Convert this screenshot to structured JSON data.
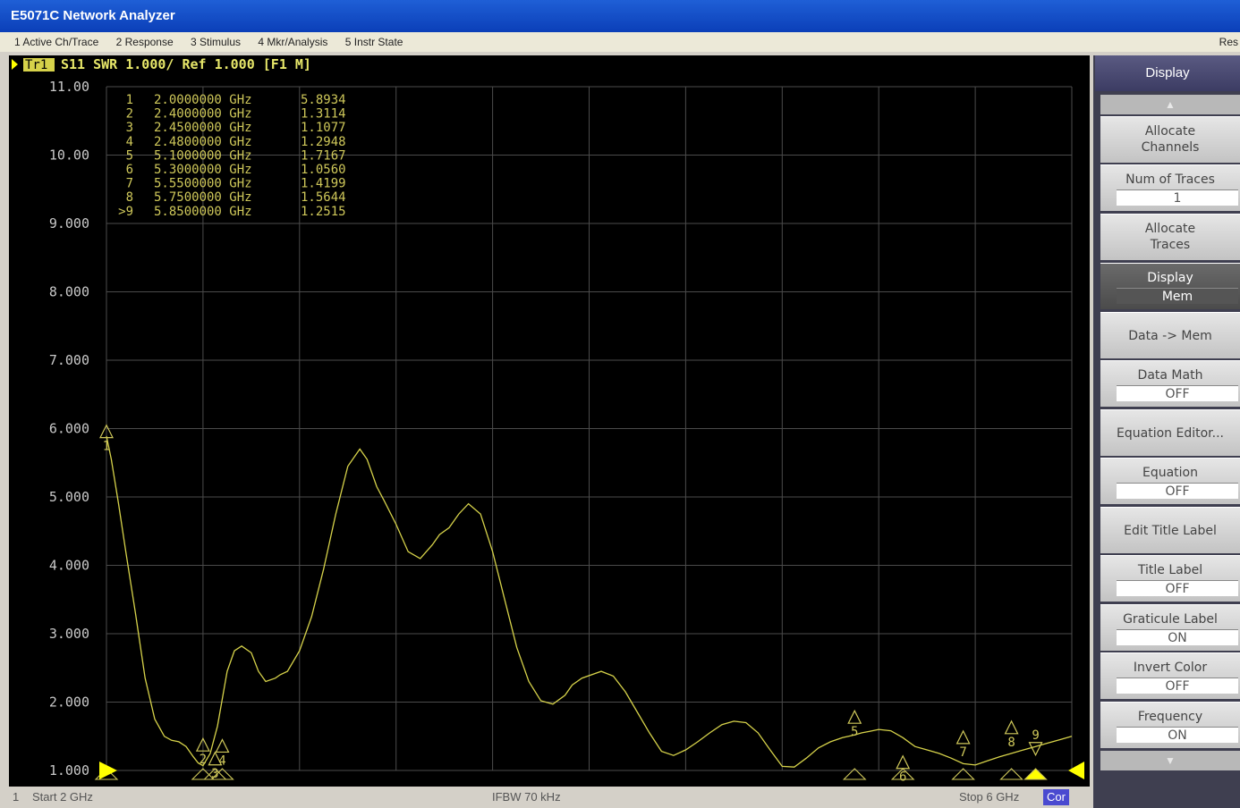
{
  "window": {
    "title": "E5071C Network Analyzer"
  },
  "menu": {
    "items": [
      "1 Active Ch/Trace",
      "2 Response",
      "3 Stimulus",
      "4 Mkr/Analysis",
      "5 Instr State"
    ],
    "restore": "Res"
  },
  "trace_header": {
    "trace": "Tr1",
    "text": "S11  SWR 1.000/ Ref 1.000 [F1 M]"
  },
  "status": {
    "channel": "1",
    "start": "Start 2 GHz",
    "ifbw": "IFBW 70 kHz",
    "stop": "Stop 6 GHz",
    "cor": "Cor"
  },
  "softkeys": {
    "title": "Display",
    "up_arrow": "▲",
    "down_arrow": "▼",
    "allocate_channels": {
      "l1": "Allocate",
      "l2": "Channels"
    },
    "num_traces": {
      "label": "Num of Traces",
      "value": "1"
    },
    "allocate_traces": {
      "l1": "Allocate",
      "l2": "Traces"
    },
    "display": {
      "label": "Display",
      "value": "Mem"
    },
    "data_mem": "Data -> Mem",
    "data_math": {
      "label": "Data Math",
      "value": "OFF"
    },
    "equation_editor": "Equation Editor...",
    "equation": {
      "label": "Equation",
      "value": "OFF"
    },
    "edit_title": "Edit Title Label",
    "title_label": {
      "label": "Title Label",
      "value": "OFF"
    },
    "graticule_label": {
      "label": "Graticule Label",
      "value": "ON"
    },
    "invert_color": {
      "label": "Invert Color",
      "value": "OFF"
    },
    "frequency": {
      "label": "Frequency",
      "value": "ON"
    }
  },
  "colors": {
    "trace": "#d6d24a",
    "grid": "#4b4b4b",
    "label": "#c9c9c9",
    "marker_text": "#cfc85a"
  },
  "chart_data": {
    "type": "line",
    "xlim": [
      2.0,
      6.0
    ],
    "ylim": [
      1.0,
      11.0
    ],
    "ytick_labels": [
      "11.00",
      "10.00",
      "9.000",
      "8.000",
      "7.000",
      "6.000",
      "5.000",
      "4.000",
      "3.000",
      "2.000",
      "1.000"
    ],
    "x_ghz": [
      2.0,
      2.02,
      2.05,
      2.08,
      2.12,
      2.16,
      2.2,
      2.24,
      2.27,
      2.3,
      2.33,
      2.36,
      2.38,
      2.4,
      2.43,
      2.46,
      2.48,
      2.5,
      2.53,
      2.56,
      2.6,
      2.63,
      2.66,
      2.7,
      2.72,
      2.75,
      2.8,
      2.85,
      2.9,
      2.95,
      3.0,
      3.05,
      3.08,
      3.12,
      3.15,
      3.2,
      3.25,
      3.3,
      3.35,
      3.38,
      3.42,
      3.46,
      3.5,
      3.55,
      3.6,
      3.65,
      3.7,
      3.75,
      3.8,
      3.85,
      3.9,
      3.93,
      3.97,
      4.05,
      4.1,
      4.15,
      4.2,
      4.25,
      4.3,
      4.35,
      4.4,
      4.45,
      4.5,
      4.55,
      4.6,
      4.65,
      4.7,
      4.75,
      4.8,
      4.85,
      4.9,
      4.95,
      5.0,
      5.05,
      5.1,
      5.13,
      5.16,
      5.2,
      5.25,
      5.3,
      5.35,
      5.4,
      5.45,
      5.5,
      5.55,
      5.6,
      5.65,
      5.7,
      5.75,
      5.8,
      5.85,
      5.9,
      5.95,
      6.0
    ],
    "swr": [
      5.89,
      5.55,
      4.9,
      4.2,
      3.3,
      2.35,
      1.75,
      1.5,
      1.44,
      1.42,
      1.35,
      1.2,
      1.11,
      1.07,
      1.25,
      1.65,
      2.05,
      2.45,
      2.75,
      2.82,
      2.72,
      2.45,
      2.3,
      2.35,
      2.4,
      2.45,
      2.75,
      3.25,
      3.95,
      4.75,
      5.45,
      5.7,
      5.55,
      5.15,
      4.95,
      4.6,
      4.2,
      4.1,
      4.3,
      4.45,
      4.55,
      4.75,
      4.9,
      4.75,
      4.2,
      3.5,
      2.8,
      2.3,
      2.02,
      1.97,
      2.1,
      2.25,
      2.35,
      2.45,
      2.38,
      2.15,
      1.85,
      1.55,
      1.28,
      1.22,
      1.3,
      1.42,
      1.55,
      1.67,
      1.72,
      1.7,
      1.55,
      1.3,
      1.06,
      1.05,
      1.18,
      1.33,
      1.42,
      1.48,
      1.52,
      1.55,
      1.57,
      1.6,
      1.58,
      1.48,
      1.35,
      1.3,
      1.25,
      1.18,
      1.1,
      1.08,
      1.14,
      1.2,
      1.25,
      1.3,
      1.35,
      1.4,
      1.45,
      1.5
    ],
    "markers": [
      {
        "num": "1",
        "freq": "2.0000000 GHz",
        "value": "5.8934",
        "x": 2.0,
        "y": 5.8934
      },
      {
        "num": "2",
        "freq": "2.4000000 GHz",
        "value": "1.3114",
        "x": 2.4,
        "y": 1.3114
      },
      {
        "num": "3",
        "freq": "2.4500000 GHz",
        "value": "1.1077",
        "x": 2.45,
        "y": 1.1077
      },
      {
        "num": "4",
        "freq": "2.4800000 GHz",
        "value": "1.2948",
        "x": 2.48,
        "y": 1.2948
      },
      {
        "num": "5",
        "freq": "5.1000000 GHz",
        "value": "1.7167",
        "x": 5.1,
        "y": 1.7167
      },
      {
        "num": "6",
        "freq": "5.3000000 GHz",
        "value": "1.0560",
        "x": 5.3,
        "y": 1.056
      },
      {
        "num": "7",
        "freq": "5.5500000 GHz",
        "value": "1.4199",
        "x": 5.55,
        "y": 1.4199
      },
      {
        "num": "8",
        "freq": "5.7500000 GHz",
        "value": "1.5644",
        "x": 5.75,
        "y": 1.5644
      },
      {
        "num": ">9",
        "freq": "5.8500000 GHz",
        "value": "1.2515",
        "x": 5.85,
        "y": 1.2515
      }
    ]
  }
}
